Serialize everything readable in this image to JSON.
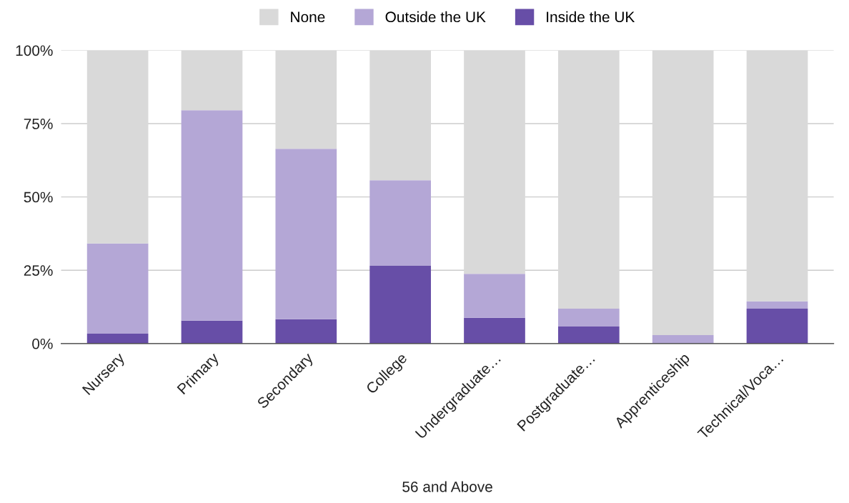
{
  "chart_data": {
    "type": "bar",
    "stacked": true,
    "xlabel": "56 and Above",
    "categories": [
      "Nursery",
      "Primary",
      "Secondary",
      "College",
      "Undergraduate…",
      "Postgraduate…",
      "Apprenticeship",
      "Technical/Voca…"
    ],
    "series": [
      {
        "name": "Inside the UK",
        "color": "#674ea7",
        "values": [
          3.4,
          7.8,
          8.3,
          26.5,
          8.8,
          5.8,
          0,
          11.9
        ]
      },
      {
        "name": "Outside the UK",
        "color": "#b4a7d6",
        "values": [
          30.7,
          71.8,
          58.1,
          29.2,
          15.0,
          6.1,
          2.9,
          2.5
        ]
      },
      {
        "name": "None",
        "color": "#d9d9d9",
        "values": [
          65.9,
          20.4,
          33.6,
          44.3,
          76.2,
          88.1,
          97.1,
          85.6
        ]
      }
    ],
    "ylim": [
      0,
      100
    ],
    "yticks": [
      {
        "value": 0,
        "label": "0%"
      },
      {
        "value": 25,
        "label": "25%"
      },
      {
        "value": 50,
        "label": "50%"
      },
      {
        "value": 75,
        "label": "75%"
      },
      {
        "value": 100,
        "label": "100%"
      }
    ],
    "grid": "y",
    "legend": "top"
  }
}
